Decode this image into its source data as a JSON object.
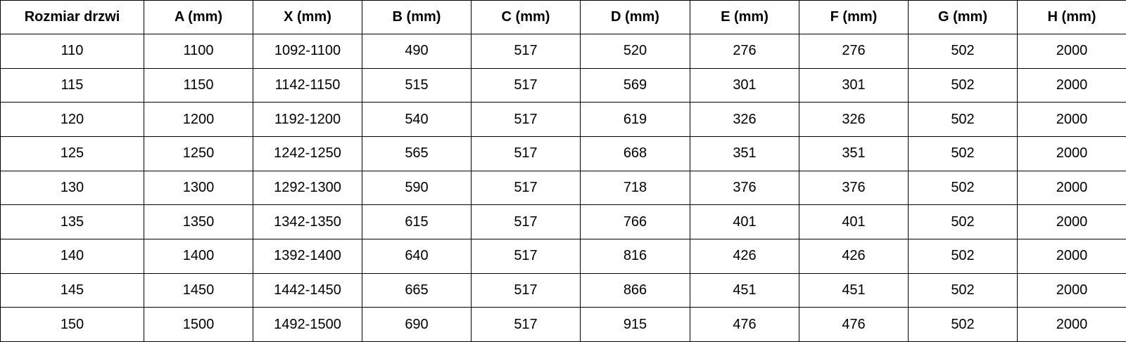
{
  "table": {
    "header": [
      "Rozmiar drzwi",
      "A (mm)",
      "X (mm)",
      "B (mm)",
      "C (mm)",
      "D (mm)",
      "E (mm)",
      "F (mm)",
      "G (mm)",
      "H (mm)"
    ],
    "rows": [
      [
        110,
        1100,
        "1092-1100",
        490,
        517,
        520,
        276,
        276,
        502,
        2000
      ],
      [
        115,
        1150,
        "1142-1150",
        515,
        517,
        569,
        301,
        301,
        502,
        2000
      ],
      [
        120,
        1200,
        "1192-1200",
        540,
        517,
        619,
        326,
        326,
        502,
        2000
      ],
      [
        125,
        1250,
        "1242-1250",
        565,
        517,
        668,
        351,
        351,
        502,
        2000
      ],
      [
        130,
        1300,
        "1292-1300",
        590,
        517,
        718,
        376,
        376,
        502,
        2000
      ],
      [
        135,
        1350,
        "1342-1350",
        615,
        517,
        766,
        401,
        401,
        502,
        2000
      ],
      [
        140,
        1400,
        "1392-1400",
        640,
        517,
        816,
        426,
        426,
        502,
        2000
      ],
      [
        145,
        1450,
        "1442-1450",
        665,
        517,
        866,
        451,
        451,
        502,
        2000
      ],
      [
        150,
        1500,
        "1492-1500",
        690,
        517,
        915,
        476,
        476,
        502,
        2000
      ]
    ]
  }
}
